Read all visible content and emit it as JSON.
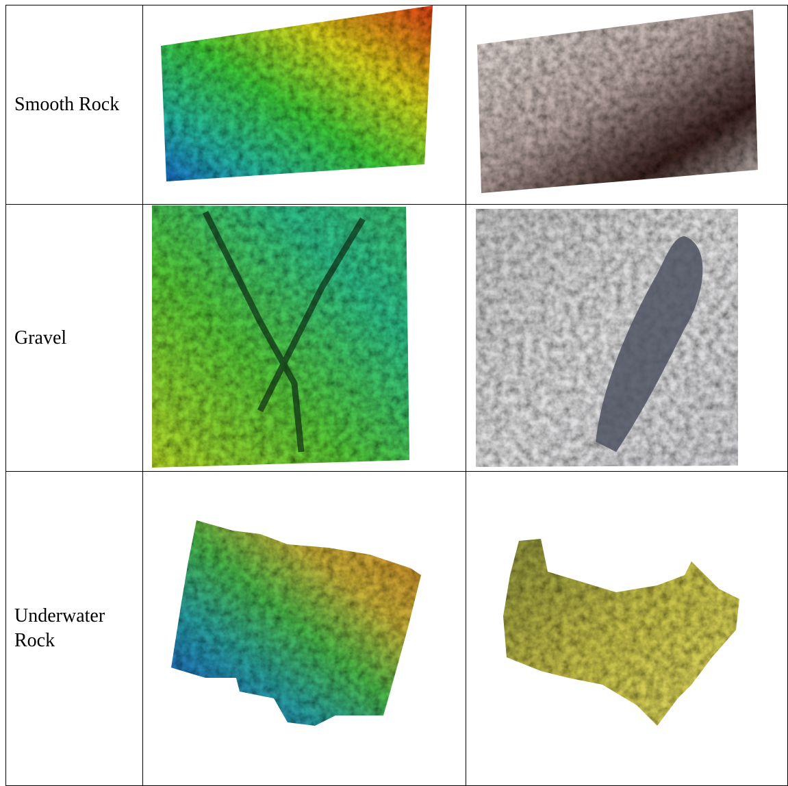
{
  "table": {
    "rows": [
      [
        "Smooth Rock"
      ],
      [
        "Gravel"
      ],
      [
        "Underwater Rock"
      ]
    ]
  }
}
